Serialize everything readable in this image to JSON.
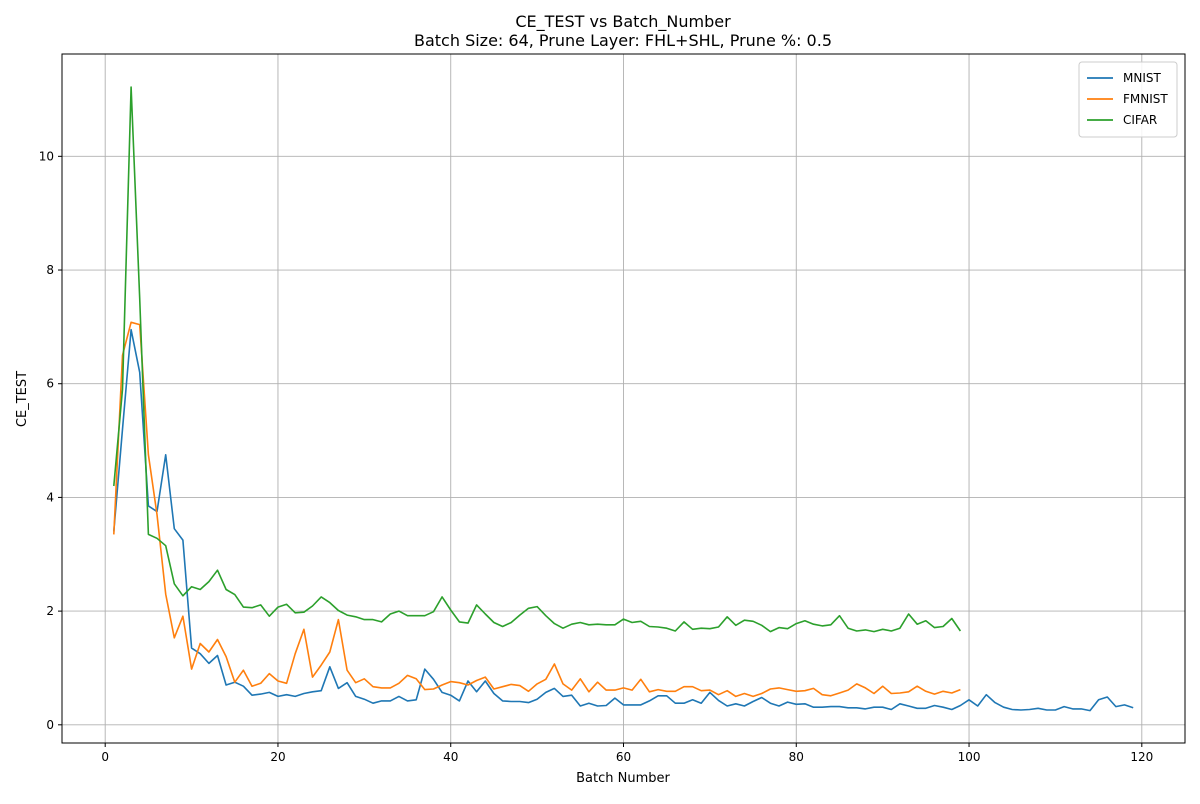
{
  "chart_data": {
    "type": "line",
    "title": "CE_TEST vs Batch_Number",
    "subtitle": "Batch Size: 64, Prune Layer: FHL+SHL, Prune %: 0.5",
    "xlabel": "Batch Number",
    "ylabel": "CE_TEST",
    "xlim": [
      -5,
      125
    ],
    "ylim": [
      -0.32,
      11.8
    ],
    "xticks": [
      0,
      20,
      40,
      60,
      80,
      100,
      120
    ],
    "yticks": [
      0,
      2,
      4,
      6,
      8,
      10
    ],
    "grid": true,
    "legend_position": "top-right",
    "series": [
      {
        "name": "MNIST",
        "color": "#1f77b4",
        "x_start": 1,
        "values": [
          3.4,
          5.2,
          6.95,
          6.2,
          3.85,
          3.75,
          4.75,
          3.45,
          3.25,
          1.35,
          1.25,
          1.08,
          1.22,
          0.7,
          0.75,
          0.68,
          0.52,
          0.54,
          0.57,
          0.5,
          0.53,
          0.5,
          0.55,
          0.58,
          0.6,
          1.02,
          0.64,
          0.74,
          0.5,
          0.45,
          0.38,
          0.42,
          0.42,
          0.5,
          0.42,
          0.44,
          0.98,
          0.8,
          0.57,
          0.52,
          0.42,
          0.77,
          0.58,
          0.77,
          0.55,
          0.42,
          0.41,
          0.41,
          0.39,
          0.45,
          0.57,
          0.64,
          0.5,
          0.52,
          0.33,
          0.38,
          0.33,
          0.34,
          0.47,
          0.35,
          0.35,
          0.35,
          0.42,
          0.51,
          0.51,
          0.38,
          0.38,
          0.44,
          0.38,
          0.57,
          0.43,
          0.33,
          0.37,
          0.33,
          0.41,
          0.48,
          0.38,
          0.33,
          0.4,
          0.36,
          0.37,
          0.31,
          0.31,
          0.32,
          0.32,
          0.3,
          0.3,
          0.28,
          0.31,
          0.31,
          0.27,
          0.37,
          0.33,
          0.29,
          0.29,
          0.34,
          0.31,
          0.27,
          0.34,
          0.44,
          0.33,
          0.53,
          0.39,
          0.31,
          0.27,
          0.26,
          0.27,
          0.29,
          0.26,
          0.26,
          0.32,
          0.28,
          0.28,
          0.25,
          0.44,
          0.49,
          0.32,
          0.35,
          0.3
        ]
      },
      {
        "name": "FMNIST",
        "color": "#ff7f0e",
        "x_start": 1,
        "values": [
          3.35,
          6.5,
          7.08,
          7.04,
          4.75,
          3.7,
          2.3,
          1.53,
          1.91,
          0.98,
          1.43,
          1.28,
          1.5,
          1.2,
          0.75,
          0.96,
          0.68,
          0.73,
          0.9,
          0.77,
          0.73,
          1.25,
          1.68,
          0.84,
          1.05,
          1.28,
          1.85,
          0.96,
          0.74,
          0.81,
          0.67,
          0.65,
          0.65,
          0.73,
          0.87,
          0.81,
          0.62,
          0.63,
          0.7,
          0.76,
          0.74,
          0.7,
          0.78,
          0.84,
          0.63,
          0.67,
          0.71,
          0.69,
          0.59,
          0.72,
          0.8,
          1.07,
          0.72,
          0.61,
          0.81,
          0.58,
          0.75,
          0.61,
          0.61,
          0.65,
          0.61,
          0.8,
          0.58,
          0.62,
          0.59,
          0.59,
          0.67,
          0.67,
          0.6,
          0.61,
          0.53,
          0.6,
          0.5,
          0.55,
          0.5,
          0.55,
          0.63,
          0.65,
          0.62,
          0.59,
          0.6,
          0.64,
          0.53,
          0.51,
          0.56,
          0.61,
          0.72,
          0.65,
          0.55,
          0.68,
          0.55,
          0.56,
          0.58,
          0.68,
          0.59,
          0.54,
          0.59,
          0.56,
          0.62
        ]
      },
      {
        "name": "CIFAR",
        "color": "#2ca02c",
        "x_start": 1,
        "values": [
          4.2,
          5.9,
          11.22,
          7.5,
          3.35,
          3.28,
          3.15,
          2.48,
          2.27,
          2.43,
          2.38,
          2.52,
          2.72,
          2.38,
          2.29,
          2.07,
          2.06,
          2.11,
          1.91,
          2.07,
          2.12,
          1.97,
          1.98,
          2.09,
          2.25,
          2.15,
          2.01,
          1.93,
          1.9,
          1.85,
          1.85,
          1.81,
          1.95,
          2.0,
          1.92,
          1.92,
          1.92,
          1.99,
          2.25,
          2.02,
          1.81,
          1.79,
          2.11,
          1.95,
          1.8,
          1.73,
          1.8,
          1.93,
          2.05,
          2.08,
          1.92,
          1.78,
          1.7,
          1.77,
          1.8,
          1.76,
          1.77,
          1.76,
          1.76,
          1.86,
          1.8,
          1.82,
          1.73,
          1.72,
          1.7,
          1.65,
          1.81,
          1.68,
          1.7,
          1.69,
          1.72,
          1.9,
          1.75,
          1.84,
          1.82,
          1.75,
          1.64,
          1.71,
          1.69,
          1.78,
          1.83,
          1.77,
          1.74,
          1.76,
          1.92,
          1.7,
          1.65,
          1.67,
          1.64,
          1.68,
          1.65,
          1.7,
          1.95,
          1.77,
          1.83,
          1.71,
          1.73,
          1.87,
          1.65
        ]
      }
    ]
  }
}
